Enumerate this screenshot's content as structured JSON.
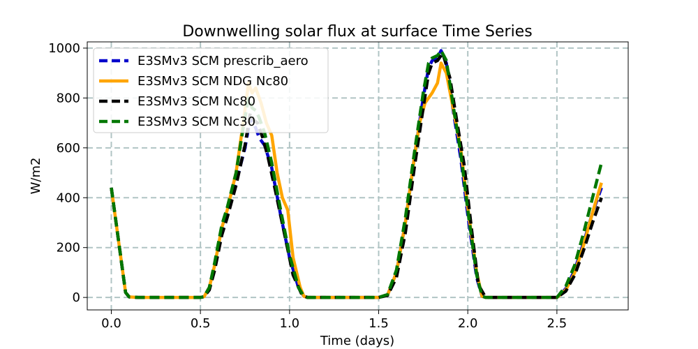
{
  "chart_data": {
    "type": "line",
    "title": "Downwelling solar flux at surface Time Series",
    "xlabel": "Time (days)",
    "ylabel": "W/m2",
    "xlim": [
      -0.135,
      2.9
    ],
    "ylim": [
      -50,
      1025
    ],
    "xticks": [
      0.0,
      0.5,
      1.0,
      1.5,
      2.0,
      2.5
    ],
    "xtick_labels": [
      "0.0",
      "0.5",
      "1.0",
      "1.5",
      "2.0",
      "2.5"
    ],
    "yticks": [
      0,
      200,
      400,
      600,
      800,
      1000
    ],
    "ytick_labels": [
      "0",
      "200",
      "400",
      "600",
      "800",
      "1000"
    ],
    "grid": true,
    "legend_position": "top-left",
    "series": [
      {
        "name": "E3SMv3 SCM prescrib_aero",
        "color": "#0000cc",
        "dash": "dashed",
        "x": [
          0.0,
          0.04,
          0.08,
          0.1,
          0.15,
          0.5,
          0.52,
          0.55,
          0.58,
          0.62,
          0.65,
          0.7,
          0.75,
          0.78,
          0.81,
          0.83,
          0.86,
          0.9,
          0.95,
          1.0,
          1.05,
          1.08,
          1.1,
          1.5,
          1.55,
          1.6,
          1.65,
          1.7,
          1.75,
          1.78,
          1.8,
          1.83,
          1.85,
          1.88,
          1.92,
          1.96,
          2.0,
          2.05,
          2.08,
          2.1,
          2.5,
          2.55,
          2.6,
          2.65,
          2.7,
          2.75
        ],
        "values": [
          440,
          230,
          20,
          2,
          0,
          0,
          3,
          40,
          130,
          270,
          340,
          460,
          600,
          720,
          680,
          640,
          610,
          520,
          330,
          160,
          40,
          5,
          0,
          0,
          10,
          100,
          300,
          560,
          800,
          920,
          950,
          960,
          990,
          940,
          740,
          560,
          330,
          80,
          5,
          0,
          0,
          35,
          110,
          220,
          340,
          440
        ]
      },
      {
        "name": "E3SMv3 SCM NDG Nc80",
        "color": "#ffa500",
        "dash": "solid",
        "x": [
          0.0,
          0.04,
          0.08,
          0.1,
          0.15,
          0.5,
          0.52,
          0.55,
          0.58,
          0.62,
          0.65,
          0.7,
          0.74,
          0.77,
          0.79,
          0.81,
          0.84,
          0.87,
          0.9,
          0.93,
          0.96,
          0.99,
          1.02,
          1.06,
          1.08,
          1.1,
          1.5,
          1.55,
          1.6,
          1.65,
          1.7,
          1.73,
          1.76,
          1.8,
          1.83,
          1.85,
          1.88,
          1.92,
          1.96,
          2.0,
          2.05,
          2.08,
          2.1,
          2.5,
          2.55,
          2.6,
          2.65,
          2.7,
          2.75
        ],
        "values": [
          440,
          230,
          20,
          2,
          0,
          0,
          3,
          40,
          130,
          280,
          350,
          500,
          700,
          860,
          820,
          840,
          780,
          700,
          650,
          500,
          400,
          350,
          160,
          40,
          5,
          0,
          0,
          10,
          100,
          300,
          560,
          700,
          780,
          820,
          860,
          940,
          900,
          750,
          600,
          360,
          100,
          5,
          0,
          0,
          30,
          100,
          210,
          340,
          460
        ]
      },
      {
        "name": "E3SMv3 SCM Nc80",
        "color": "#000000",
        "dash": "dashed",
        "x": [
          0.0,
          0.04,
          0.08,
          0.1,
          0.15,
          0.5,
          0.52,
          0.55,
          0.58,
          0.62,
          0.65,
          0.7,
          0.75,
          0.78,
          0.8,
          0.82,
          0.85,
          0.88,
          0.92,
          0.97,
          1.02,
          1.07,
          1.1,
          1.5,
          1.55,
          1.6,
          1.65,
          1.7,
          1.75,
          1.78,
          1.8,
          1.83,
          1.86,
          1.9,
          1.94,
          1.98,
          2.02,
          2.06,
          2.1,
          2.5,
          2.55,
          2.6,
          2.65,
          2.7,
          2.75
        ],
        "values": [
          440,
          230,
          20,
          2,
          0,
          0,
          3,
          30,
          110,
          250,
          320,
          450,
          610,
          740,
          710,
          700,
          640,
          560,
          430,
          260,
          90,
          10,
          0,
          0,
          8,
          80,
          260,
          520,
          760,
          900,
          940,
          950,
          980,
          880,
          700,
          530,
          280,
          50,
          0,
          0,
          25,
          90,
          190,
          300,
          400
        ]
      },
      {
        "name": "E3SMv3 SCM Nc30",
        "color": "#007700",
        "dash": "dashed",
        "x": [
          0.0,
          0.04,
          0.08,
          0.1,
          0.15,
          0.5,
          0.52,
          0.55,
          0.58,
          0.62,
          0.65,
          0.7,
          0.74,
          0.77,
          0.79,
          0.81,
          0.83,
          0.86,
          0.9,
          0.95,
          1.0,
          1.05,
          1.08,
          1.1,
          1.5,
          1.55,
          1.6,
          1.65,
          1.7,
          1.75,
          1.78,
          1.8,
          1.83,
          1.85,
          1.88,
          1.92,
          1.96,
          2.0,
          2.05,
          2.08,
          2.1,
          2.5,
          2.55,
          2.6,
          2.65,
          2.7,
          2.75
        ],
        "values": [
          440,
          230,
          20,
          2,
          0,
          0,
          3,
          40,
          140,
          290,
          360,
          500,
          680,
          800,
          760,
          750,
          720,
          660,
          540,
          350,
          170,
          40,
          5,
          0,
          0,
          12,
          110,
          320,
          580,
          820,
          940,
          960,
          970,
          990,
          950,
          760,
          580,
          350,
          90,
          5,
          0,
          0,
          45,
          130,
          260,
          400,
          540
        ]
      }
    ]
  }
}
